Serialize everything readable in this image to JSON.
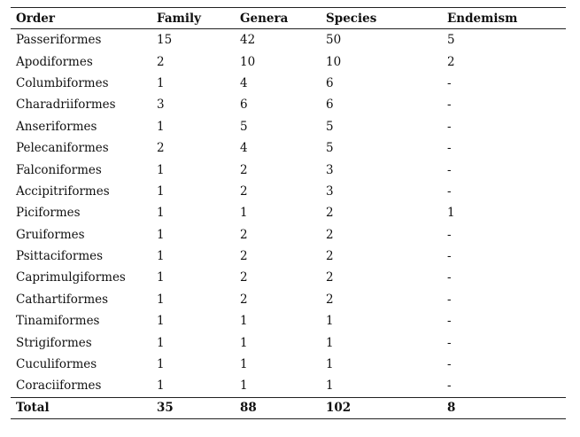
{
  "table": {
    "headers": [
      "Order",
      "Family",
      "Genera",
      "Species",
      "Endemism"
    ],
    "rows": [
      [
        "Passeriformes",
        "15",
        "42",
        "50",
        "5"
      ],
      [
        "Apodiformes",
        "2",
        "10",
        "10",
        "2"
      ],
      [
        "Columbiformes",
        "1",
        "4",
        "6",
        "-"
      ],
      [
        "Charadriiformes",
        "3",
        "6",
        "6",
        "-"
      ],
      [
        "Anseriformes",
        "1",
        "5",
        "5",
        "-"
      ],
      [
        "Pelecaniformes",
        "2",
        "4",
        "5",
        "-"
      ],
      [
        "Falconiformes",
        "1",
        "2",
        "3",
        "-"
      ],
      [
        "Accipitriformes",
        "1",
        "2",
        "3",
        "-"
      ],
      [
        "Piciformes",
        "1",
        "1",
        "2",
        "1"
      ],
      [
        "Gruiformes",
        "1",
        "2",
        "2",
        "-"
      ],
      [
        "Psittaciformes",
        "1",
        "2",
        "2",
        "-"
      ],
      [
        "Caprimulgiformes",
        "1",
        "2",
        "2",
        "-"
      ],
      [
        "Cathartiformes",
        "1",
        "2",
        "2",
        "-"
      ],
      [
        "Tinamiformes",
        "1",
        "1",
        "1",
        "-"
      ],
      [
        "Strigiformes",
        "1",
        "1",
        "1",
        "-"
      ],
      [
        "Cuculiformes",
        "1",
        "1",
        "1",
        "-"
      ],
      [
        "Coraciiformes",
        "1",
        "1",
        "1",
        "-"
      ]
    ],
    "total": [
      "Total",
      "35",
      "88",
      "102",
      "8"
    ]
  }
}
